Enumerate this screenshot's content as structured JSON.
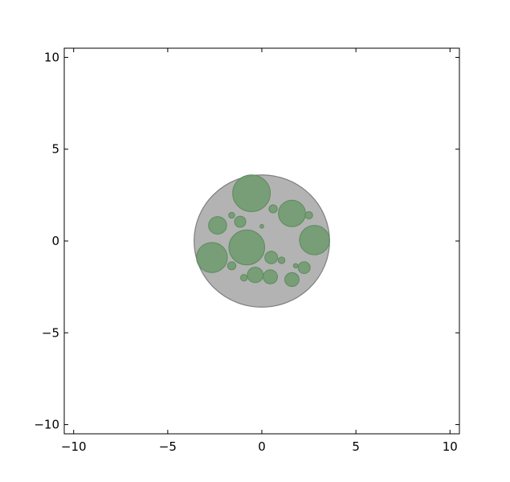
{
  "chart_data": {
    "type": "scatter",
    "title": "",
    "xlabel": "",
    "ylabel": "",
    "xlim": [
      -10.5,
      10.5
    ],
    "ylim": [
      -10.5,
      10.5
    ],
    "grid": false,
    "xticks": [
      -10,
      -5,
      0,
      5,
      10
    ],
    "yticks": [
      -10,
      -5,
      0,
      5,
      10
    ],
    "xtick_labels": [
      "−10",
      "−5",
      "0",
      "5",
      "10"
    ],
    "ytick_labels": [
      "−10",
      "−5",
      "0",
      "5",
      "10"
    ],
    "colors": {
      "container_fill": "#b3b3b3",
      "container_edge": "#7f7f7f",
      "circle_fill": "#6c9a6c",
      "circle_edge": "#5e8a5e"
    },
    "container": {
      "x": 0.0,
      "y": 0.0,
      "r": 3.6
    },
    "circles": [
      {
        "x": -0.55,
        "y": 2.6,
        "r": 1.0
      },
      {
        "x": 1.6,
        "y": 1.5,
        "r": 0.72
      },
      {
        "x": 2.8,
        "y": 0.05,
        "r": 0.8
      },
      {
        "x": -0.8,
        "y": -0.35,
        "r": 0.95
      },
      {
        "x": -2.65,
        "y": -0.9,
        "r": 0.82
      },
      {
        "x": -2.35,
        "y": 0.85,
        "r": 0.48
      },
      {
        "x": -1.15,
        "y": 1.05,
        "r": 0.3
      },
      {
        "x": -1.6,
        "y": 1.4,
        "r": 0.16
      },
      {
        "x": 0.6,
        "y": 1.75,
        "r": 0.22
      },
      {
        "x": 2.5,
        "y": 1.4,
        "r": 0.2
      },
      {
        "x": 0.0,
        "y": 0.8,
        "r": 0.1
      },
      {
        "x": 0.5,
        "y": -0.9,
        "r": 0.34
      },
      {
        "x": 1.05,
        "y": -1.05,
        "r": 0.18
      },
      {
        "x": 1.8,
        "y": -1.35,
        "r": 0.12
      },
      {
        "x": 2.25,
        "y": -1.45,
        "r": 0.32
      },
      {
        "x": -1.6,
        "y": -1.35,
        "r": 0.22
      },
      {
        "x": -0.35,
        "y": -1.85,
        "r": 0.42
      },
      {
        "x": 0.45,
        "y": -1.95,
        "r": 0.38
      },
      {
        "x": -0.95,
        "y": -2.0,
        "r": 0.18
      },
      {
        "x": 1.6,
        "y": -2.1,
        "r": 0.38
      }
    ]
  }
}
